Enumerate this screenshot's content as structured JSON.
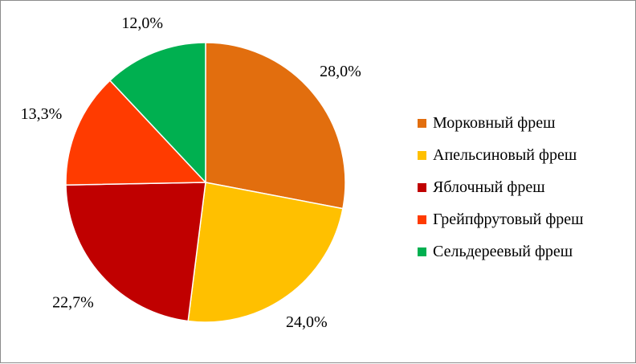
{
  "chart_data": {
    "type": "pie",
    "categories": [
      "Морковный фреш",
      "Апельсиновый фреш",
      "Яблочный фреш",
      "Грейпфрутовый фреш",
      "Сельдереевый фреш"
    ],
    "values": [
      28.0,
      24.0,
      22.7,
      13.3,
      12.0
    ],
    "labels": [
      "28,0%",
      "24,0%",
      "22,7%",
      "13,3%",
      "12,0%"
    ],
    "colors": [
      "#E26E0E",
      "#FFC000",
      "#C00000",
      "#FF3B00",
      "#00B050"
    ],
    "start": "12 o'clock",
    "direction": "clockwise",
    "legend_position": "right"
  }
}
